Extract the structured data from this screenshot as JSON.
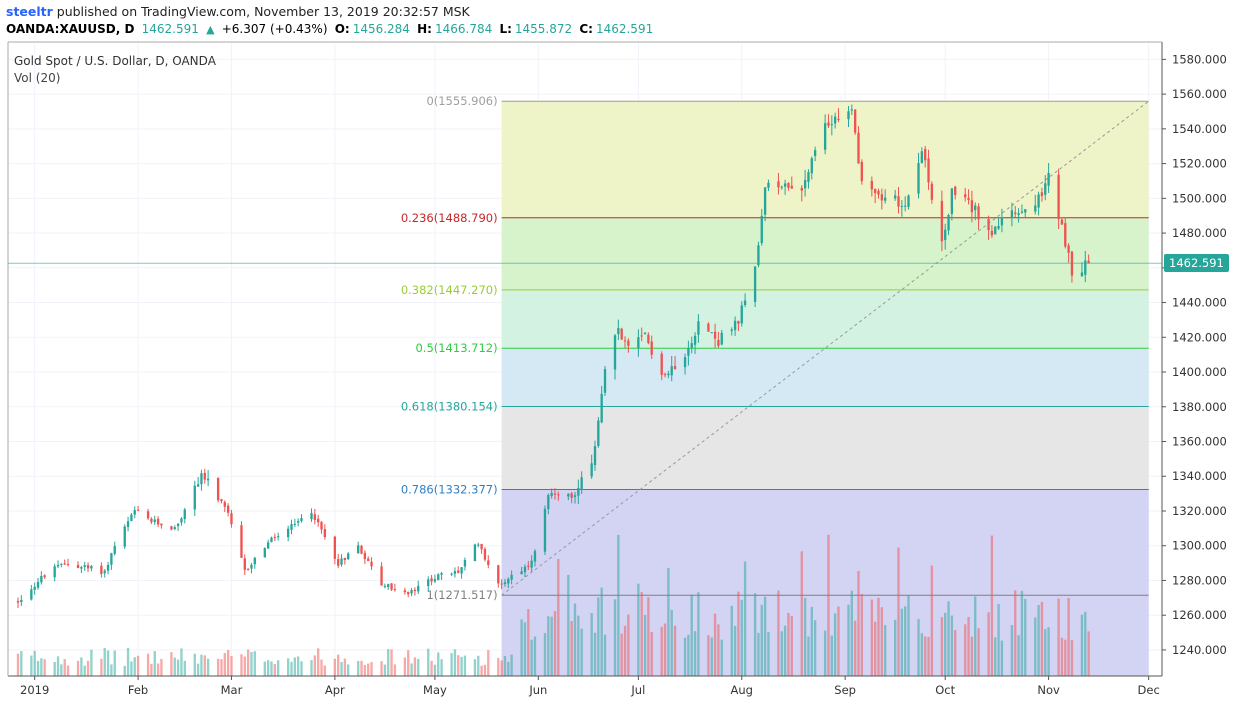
{
  "header": {
    "author": "steeltr",
    "published_text": " published on TradingView.com, November 13, 2019 20:32:57 MSK",
    "symbol": "OANDA:XAUUSD, D",
    "last": "1462.591",
    "up_arrow": "▲",
    "change": "+6.307 (+0.43%)",
    "o_label": "O:",
    "o_value": "1456.284",
    "h_label": "H:",
    "h_value": "1466.784",
    "l_label": "L:",
    "l_value": "1455.872",
    "c_label": "C:",
    "c_value": "1462.591"
  },
  "legend": {
    "title": "Gold Spot / U.S. Dollar, D, OANDA",
    "indicator": "Vol (20)"
  },
  "price_tag": "1462.591",
  "colors": {
    "up": "#26a69a",
    "down": "#ef5350",
    "grid": "#f0f3fa",
    "axis_text": "#333333"
  },
  "chart_data": {
    "type": "candlestick",
    "symbol": "OANDA:XAUUSD",
    "timeframe": "D",
    "y_axis": {
      "range": [
        1225,
        1590
      ],
      "ticks": [
        "1580.000",
        "1560.000",
        "1540.000",
        "1520.000",
        "1500.000",
        "1480.000",
        "1460.000",
        "1440.000",
        "1420.000",
        "1400.000",
        "1380.000",
        "1360.000",
        "1340.000",
        "1320.000",
        "1300.000",
        "1280.000",
        "1260.000",
        "1240.000"
      ]
    },
    "x_axis": {
      "ticks": [
        {
          "label": "2019",
          "date": "2019-01-01"
        },
        {
          "label": "Feb",
          "date": "2019-02-01"
        },
        {
          "label": "Mar",
          "date": "2019-03-01"
        },
        {
          "label": "Apr",
          "date": "2019-04-01"
        },
        {
          "label": "May",
          "date": "2019-05-01"
        },
        {
          "label": "Jun",
          "date": "2019-06-01"
        },
        {
          "label": "Jul",
          "date": "2019-07-01"
        },
        {
          "label": "Aug",
          "date": "2019-08-01"
        },
        {
          "label": "Sep",
          "date": "2019-09-01"
        },
        {
          "label": "Oct",
          "date": "2019-10-01"
        },
        {
          "label": "Nov",
          "date": "2019-11-01"
        },
        {
          "label": "Dec",
          "date": "2019-12-01"
        }
      ],
      "range": [
        "2018-12-24",
        "2019-12-05"
      ]
    },
    "last_price": 1462.591,
    "fibonacci": {
      "start_date": "2019-05-21",
      "end_date": "2019-12-01",
      "low": 1271.517,
      "high": 1555.906,
      "levels": [
        {
          "ratio": "0",
          "value": 1555.906,
          "label": "0(1555.906)",
          "color": "#9e9e9e",
          "fill": "#f4cccc"
        },
        {
          "ratio": "0.236",
          "value": 1488.79,
          "label": "0.236(1488.790)",
          "color": "#c62828",
          "fill": "#eef3c8"
        },
        {
          "ratio": "0.382",
          "value": 1447.27,
          "label": "0.382(1447.270)",
          "color": "#9acd32",
          "fill": "#d6f3cc"
        },
        {
          "ratio": "0.5",
          "value": 1413.712,
          "label": "0.5(1413.712)",
          "color": "#2ecc40",
          "fill": "#d4f2e2"
        },
        {
          "ratio": "0.618",
          "value": 1380.154,
          "label": "0.618(1380.154)",
          "color": "#26a69a",
          "fill": "#d4e9f4"
        },
        {
          "ratio": "0.786",
          "value": 1332.377,
          "label": "0.786(1332.377)",
          "color": "#2f80c6",
          "fill": "#e6e6e6"
        },
        {
          "ratio": "1",
          "value": 1271.517,
          "label": "1(1271.517)",
          "color": "#808080",
          "fill": "#d3d3f4"
        }
      ]
    },
    "anchors": [
      [
        "2018-12-27",
        1268
      ],
      [
        "2019-01-04",
        1283
      ],
      [
        "2019-01-10",
        1290
      ],
      [
        "2019-01-15",
        1288
      ],
      [
        "2019-01-22",
        1285
      ],
      [
        "2019-01-25",
        1300
      ],
      [
        "2019-01-31",
        1320
      ],
      [
        "2019-02-05",
        1314
      ],
      [
        "2019-02-12",
        1310
      ],
      [
        "2019-02-15",
        1320
      ],
      [
        "2019-02-20",
        1342
      ],
      [
        "2019-02-28",
        1318
      ],
      [
        "2019-03-05",
        1285
      ],
      [
        "2019-03-12",
        1302
      ],
      [
        "2019-03-20",
        1312
      ],
      [
        "2019-03-25",
        1320
      ],
      [
        "2019-04-02",
        1290
      ],
      [
        "2019-04-08",
        1300
      ],
      [
        "2019-04-15",
        1278
      ],
      [
        "2019-04-23",
        1272
      ],
      [
        "2019-05-01",
        1282
      ],
      [
        "2019-05-08",
        1285
      ],
      [
        "2019-05-14",
        1302
      ],
      [
        "2019-05-20",
        1277
      ],
      [
        "2019-05-24",
        1283
      ],
      [
        "2019-05-30",
        1290
      ],
      [
        "2019-06-04",
        1330
      ],
      [
        "2019-06-11",
        1328
      ],
      [
        "2019-06-17",
        1345
      ],
      [
        "2019-06-21",
        1400
      ],
      [
        "2019-06-25",
        1425
      ],
      [
        "2019-06-28",
        1412
      ],
      [
        "2019-07-03",
        1420
      ],
      [
        "2019-07-09",
        1398
      ],
      [
        "2019-07-15",
        1412
      ],
      [
        "2019-07-19",
        1428
      ],
      [
        "2019-07-25",
        1418
      ],
      [
        "2019-07-31",
        1428
      ],
      [
        "2019-08-06",
        1470
      ],
      [
        "2019-08-08",
        1505
      ],
      [
        "2019-08-13",
        1510
      ],
      [
        "2019-08-19",
        1505
      ],
      [
        "2019-08-23",
        1525
      ],
      [
        "2019-08-27",
        1545
      ],
      [
        "2019-09-03",
        1550
      ],
      [
        "2019-09-06",
        1510
      ],
      [
        "2019-09-12",
        1500
      ],
      [
        "2019-09-19",
        1498
      ],
      [
        "2019-09-24",
        1530
      ],
      [
        "2019-09-30",
        1472
      ],
      [
        "2019-10-03",
        1503
      ],
      [
        "2019-10-10",
        1493
      ],
      [
        "2019-10-15",
        1482
      ],
      [
        "2019-10-21",
        1490
      ],
      [
        "2019-10-28",
        1495
      ],
      [
        "2019-11-01",
        1512
      ],
      [
        "2019-11-05",
        1483
      ],
      [
        "2019-11-08",
        1458
      ],
      [
        "2019-11-13",
        1462
      ]
    ]
  }
}
